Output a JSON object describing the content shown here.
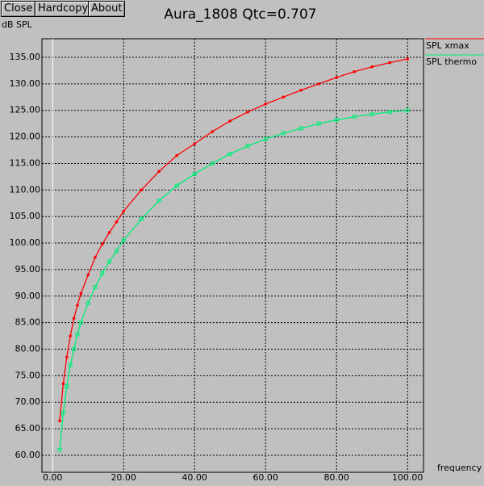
{
  "buttons": [
    "Close",
    "Hardcopy",
    "About"
  ],
  "chart_data": {
    "type": "line",
    "title": "Aura_1808 Qtc=0.707",
    "ylabel": "dB SPL",
    "xlabel": "frequency",
    "xlim": [
      -3,
      104.5
    ],
    "ylim": [
      56.8,
      138.5
    ],
    "xticks": [
      {
        "value": 0,
        "label": "0.00"
      },
      {
        "value": 20,
        "label": "20.00"
      },
      {
        "value": 40,
        "label": "40.00"
      },
      {
        "value": 60,
        "label": "60.00"
      },
      {
        "value": 80,
        "label": "80.00"
      },
      {
        "value": 100,
        "label": "100.00"
      }
    ],
    "yticks": [
      {
        "value": 60,
        "label": "60.00"
      },
      {
        "value": 65,
        "label": "65.00"
      },
      {
        "value": 70,
        "label": "70.00"
      },
      {
        "value": 75,
        "label": "75.00"
      },
      {
        "value": 80,
        "label": "80.00"
      },
      {
        "value": 85,
        "label": "85.00"
      },
      {
        "value": 90,
        "label": "90.00"
      },
      {
        "value": 95,
        "label": "95.00"
      },
      {
        "value": 100,
        "label": "100.00"
      },
      {
        "value": 105,
        "label": "105.00"
      },
      {
        "value": 110,
        "label": "110.00"
      },
      {
        "value": 115,
        "label": "115.00"
      },
      {
        "value": 120,
        "label": "120.00"
      },
      {
        "value": 125,
        "label": "125.00"
      },
      {
        "value": 130,
        "label": "130.00"
      },
      {
        "value": 135,
        "label": "135.00"
      }
    ],
    "grid": true,
    "x": [
      2,
      3,
      4,
      5,
      6,
      7,
      8,
      10,
      12,
      14,
      16,
      18,
      20,
      25,
      30,
      35,
      40,
      45,
      50,
      55,
      60,
      65,
      70,
      75,
      80,
      85,
      90,
      95,
      100
    ],
    "series": [
      {
        "name": "SPL xmax",
        "color": "#ff0000",
        "marker": "circle",
        "values": [
          66.5,
          73.5,
          78.5,
          82.5,
          85.8,
          88.3,
          90.5,
          94,
          97.3,
          99.8,
          102,
          104,
          106,
          110,
          113.5,
          116.5,
          118.7,
          121,
          123,
          124.7,
          126.2,
          127.5,
          128.8,
          130,
          131.2,
          132.3,
          133.2,
          134,
          134.7
        ]
      },
      {
        "name": "SPL thermo",
        "color": "#00ee77",
        "marker": "square",
        "values": [
          61,
          68,
          73,
          77,
          80,
          82.8,
          85,
          88.7,
          91.7,
          94.3,
          96.5,
          98.5,
          100.5,
          104.5,
          108,
          110.8,
          113,
          115,
          116.8,
          118.3,
          119.6,
          120.7,
          121.6,
          122.5,
          123.2,
          123.8,
          124.3,
          124.7,
          125
        ]
      }
    ]
  }
}
